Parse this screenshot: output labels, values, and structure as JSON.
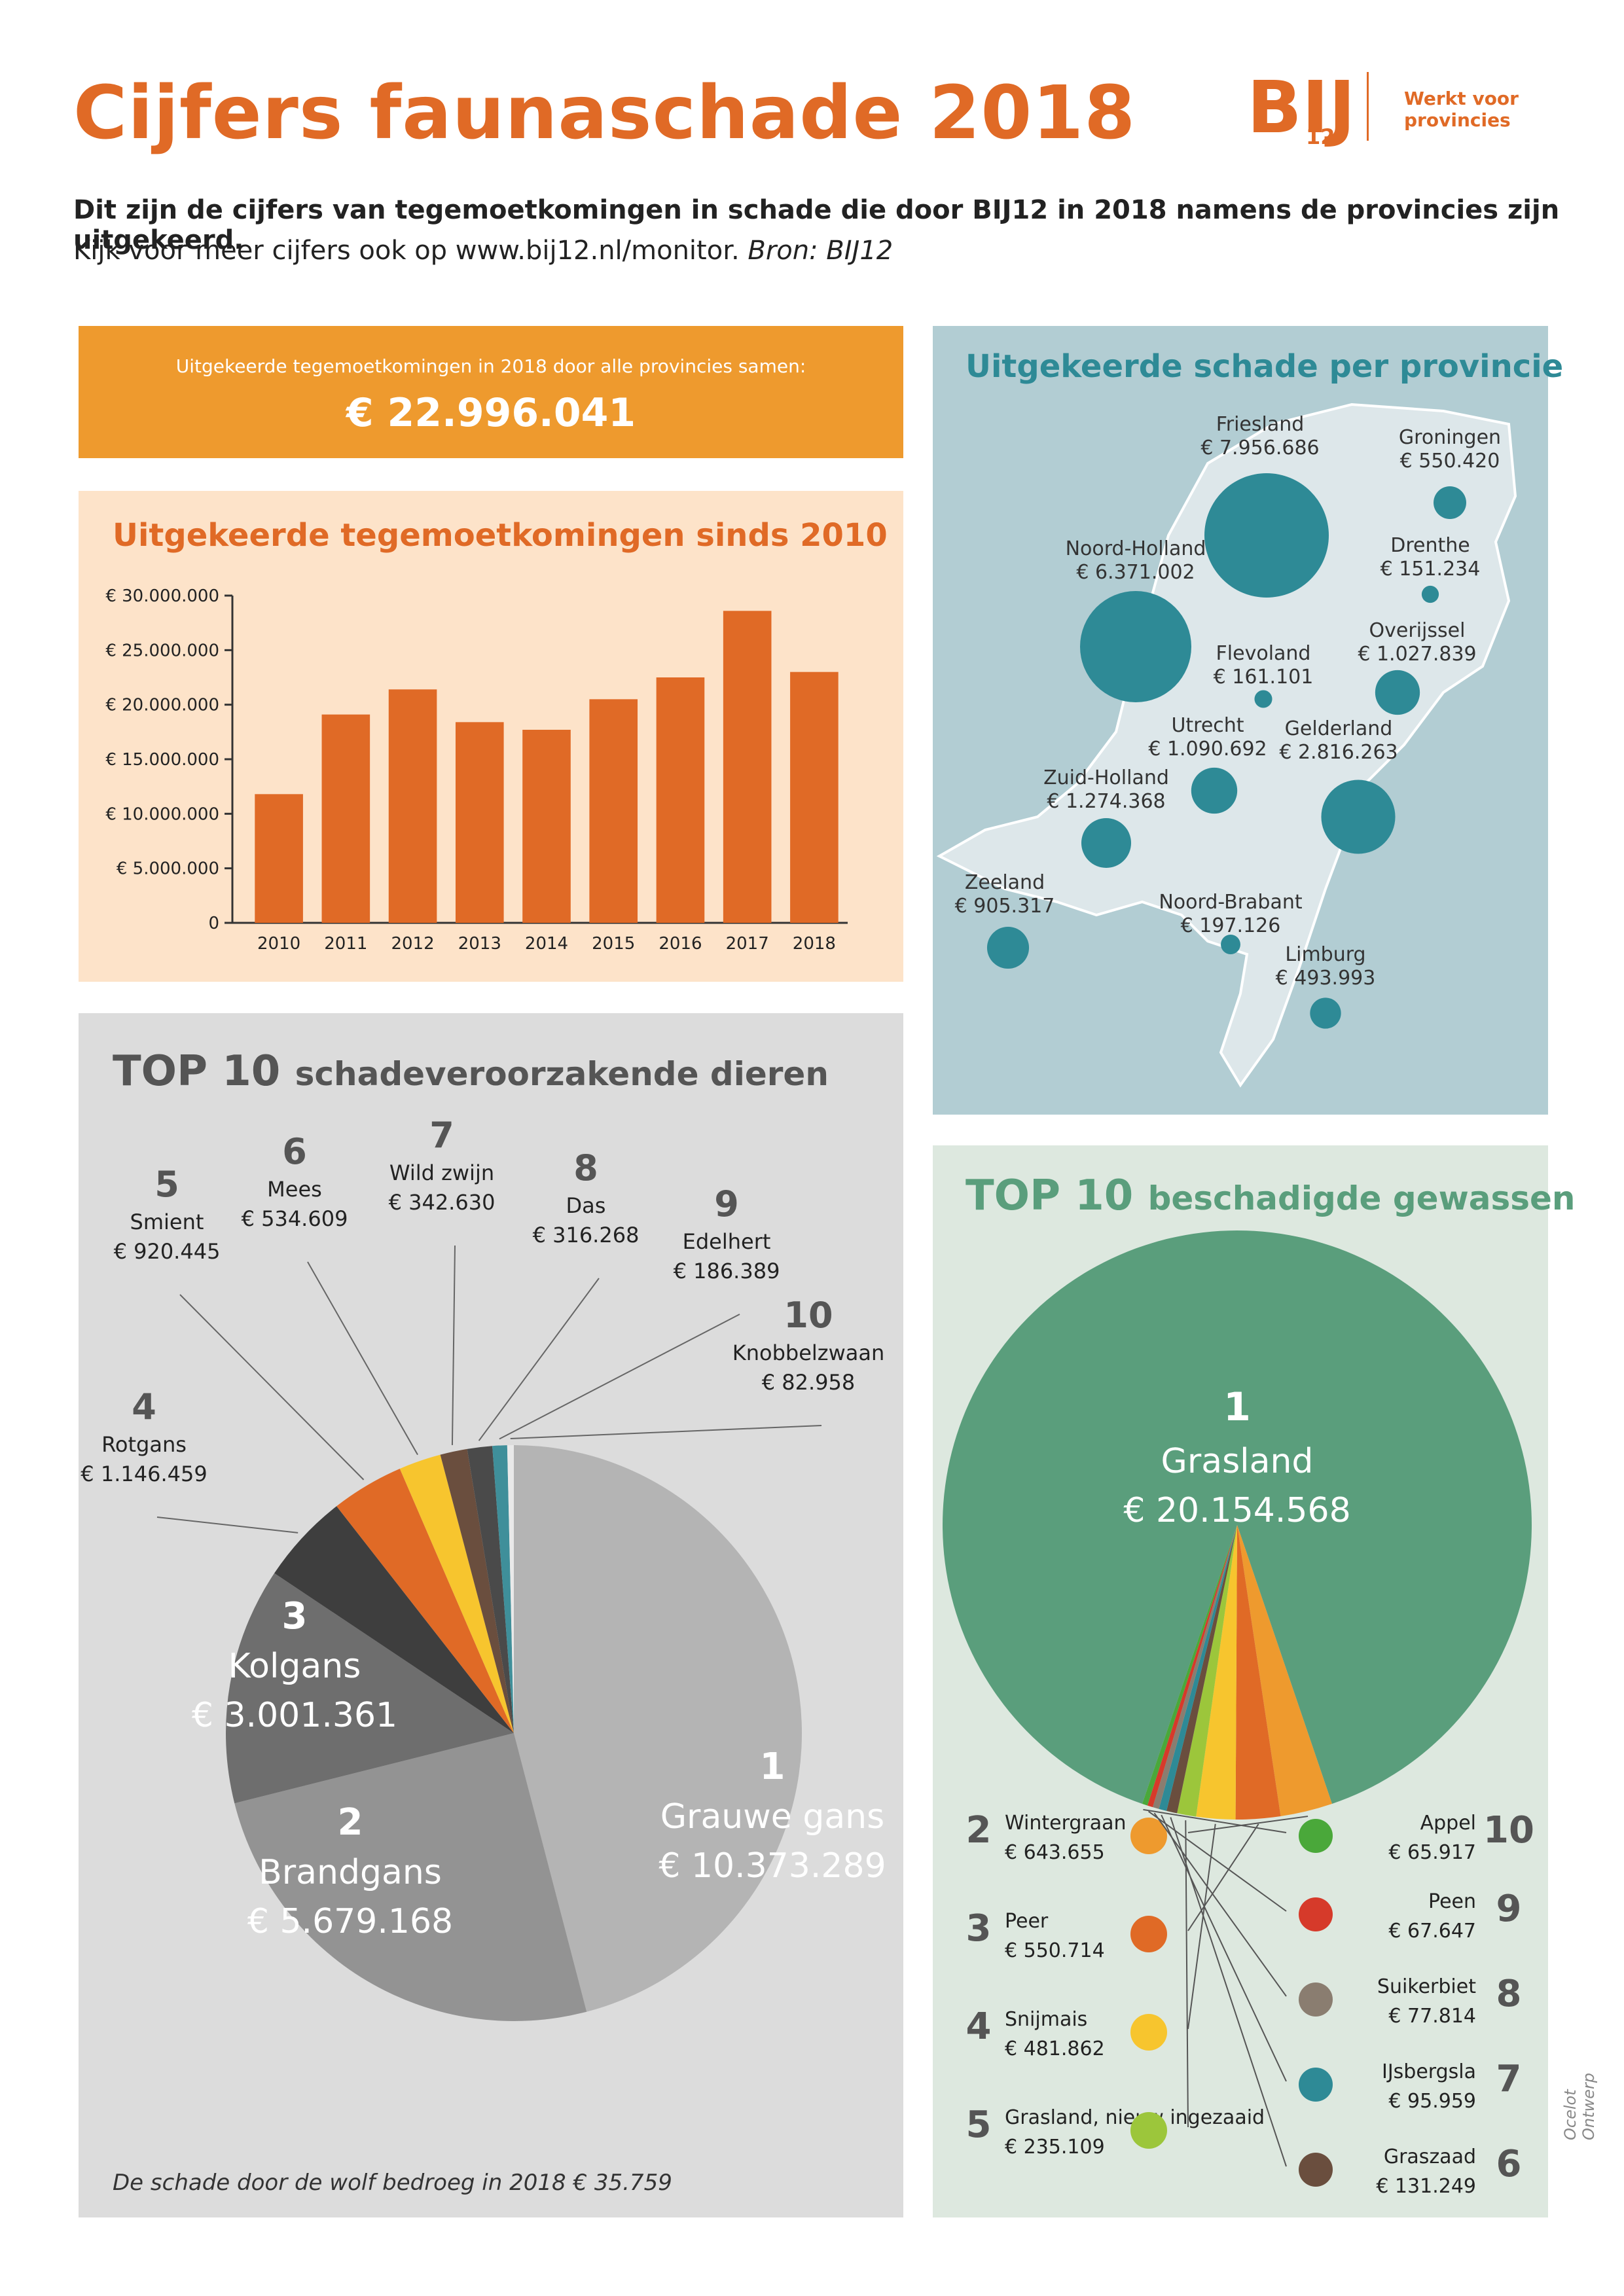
{
  "header": {
    "title": "Cijfers faunaschade 2018",
    "logo_text": "BIJ",
    "logo_number": "12",
    "tagline": "Werkt voor provincies"
  },
  "intro": {
    "line1": "Dit zijn de cijfers van tegemoetkomingen in schade die door BIJ12 in 2018 namens de provincies zijn uitgekeerd.",
    "line2": "Kijk voor meer cijfers ook op www.bij12.nl/monitor.",
    "source": "Bron: BIJ12"
  },
  "total": {
    "label": "Uitgekeerde tegemoetkomingen in 2018 door alle provincies samen:",
    "value": "€ 22.996.041"
  },
  "colors": {
    "orange": "#e06a26",
    "total_box": "#ee9a2e",
    "teal": "#2e8a96",
    "green": "#5a9e7c"
  },
  "sections": {
    "animals_rank_word": "TOP 10",
    "animals_rest": "schadeveroorzakende dieren",
    "crops_rank_word": "TOP 10",
    "crops_rest": "beschadigde gewassen",
    "wolf_note": "De schade door de wolf bedroeg in 2018 € 35.759",
    "credit": "Ocelot Ontwerp"
  },
  "chart_data": [
    {
      "type": "bar",
      "title": "Uitgekeerde tegemoetkomingen sinds 2010",
      "categories": [
        "2010",
        "2011",
        "2012",
        "2013",
        "2014",
        "2015",
        "2016",
        "2017",
        "2018"
      ],
      "values": [
        11800000,
        19100000,
        21400000,
        18400000,
        17700000,
        20500000,
        22500000,
        28600000,
        23000000
      ],
      "ylim": [
        0,
        30000000
      ],
      "yticks": [
        0,
        5000000,
        10000000,
        15000000,
        20000000,
        25000000,
        30000000
      ],
      "ytick_labels": [
        "0",
        "€ 5.000.000",
        "€ 10.000.000",
        "€ 15.000.000",
        "€ 20.000.000",
        "€ 25.000.000",
        "€ 30.000.000"
      ],
      "color": "#e06a26"
    },
    {
      "type": "scatter",
      "title": "Uitgekeerde schade per provincie",
      "points": [
        {
          "name": "Friesland",
          "label": "€ 7.956.686",
          "value": 7956686
        },
        {
          "name": "Groningen",
          "label": "€ 550.420",
          "value": 550420
        },
        {
          "name": "Drenthe",
          "label": "€ 151.234",
          "value": 151234
        },
        {
          "name": "Noord-Holland",
          "label": "€ 6.371.002",
          "value": 6371002
        },
        {
          "name": "Overijssel",
          "label": "€ 1.027.839",
          "value": 1027839
        },
        {
          "name": "Flevoland",
          "label": "€ 161.101",
          "value": 161101
        },
        {
          "name": "Utrecht",
          "label": "€ 1.090.692",
          "value": 1090692
        },
        {
          "name": "Gelderland",
          "label": "€ 2.816.263",
          "value": 2816263
        },
        {
          "name": "Zuid-Holland",
          "label": "€ 1.274.368",
          "value": 1274368
        },
        {
          "name": "Zeeland",
          "label": "€ 905.317",
          "value": 905317
        },
        {
          "name": "Noord-Brabant",
          "label": "€ 197.126",
          "value": 197126
        },
        {
          "name": "Limburg",
          "label": "€ 493.993",
          "value": 493993
        }
      ],
      "color": "#2e8a96"
    },
    {
      "type": "pie",
      "title": "TOP 10 schadeveroorzakende dieren",
      "slices": [
        {
          "rank": "1",
          "name": "Grauwe gans",
          "label": "€ 10.373.289",
          "value": 10373289,
          "color": "#b4b4b4"
        },
        {
          "rank": "2",
          "name": "Brandgans",
          "label": "€ 5.679.168",
          "value": 5679168,
          "color": "#939393"
        },
        {
          "rank": "3",
          "name": "Kolgans",
          "label": "€ 3.001.361",
          "value": 3001361,
          "color": "#6e6e6e"
        },
        {
          "rank": "4",
          "name": "Rotgans",
          "label": "€ 1.146.459",
          "value": 1146459,
          "color": "#3e3e3e"
        },
        {
          "rank": "5",
          "name": "Smient",
          "label": "€ 920.445",
          "value": 920445,
          "color": "#e06a26"
        },
        {
          "rank": "6",
          "name": "Mees",
          "label": "€ 534.609",
          "value": 534609,
          "color": "#f7c52e"
        },
        {
          "rank": "7",
          "name": "Wild zwijn",
          "label": "€ 342.630",
          "value": 342630,
          "color": "#6a4e3e"
        },
        {
          "rank": "8",
          "name": "Das",
          "label": "€ 316.268",
          "value": 316268,
          "color": "#4a4a4a"
        },
        {
          "rank": "9",
          "name": "Edelhert",
          "label": "€ 186.389",
          "value": 186389,
          "color": "#3f8f9a"
        },
        {
          "rank": "10",
          "name": "Knobbelzwaan",
          "label": "€ 82.958",
          "value": 82958,
          "color": "#e9e9e9"
        }
      ]
    },
    {
      "type": "pie",
      "title": "TOP 10 beschadigde gewassen",
      "slices": [
        {
          "rank": "1",
          "name": "Grasland",
          "label": "€ 20.154.568",
          "value": 20154568,
          "color": "#5a9e7c"
        },
        {
          "rank": "2",
          "name": "Wintergraan",
          "label": "€ 643.655",
          "value": 643655,
          "color": "#ee9a2e"
        },
        {
          "rank": "3",
          "name": "Peer",
          "label": "€ 550.714",
          "value": 550714,
          "color": "#e06a26"
        },
        {
          "rank": "4",
          "name": "Snijmais",
          "label": "€ 481.862",
          "value": 481862,
          "color": "#f7c52e"
        },
        {
          "rank": "5",
          "name": "Grasland, nieuw ingezaaid",
          "label": "€ 235.109",
          "value": 235109,
          "color": "#9cc63b"
        },
        {
          "rank": "6",
          "name": "Graszaad",
          "label": "€ 131.249",
          "value": 131249,
          "color": "#6a4e3e"
        },
        {
          "rank": "7",
          "name": "IJsbergsla",
          "label": "€ 95.959",
          "value": 95959,
          "color": "#2e8a96"
        },
        {
          "rank": "8",
          "name": "Suikerbiet",
          "label": "€ 77.814",
          "value": 77814,
          "color": "#8a7d70"
        },
        {
          "rank": "9",
          "name": "Peen",
          "label": "€ 67.647",
          "value": 67647,
          "color": "#d63a2a"
        },
        {
          "rank": "10",
          "name": "Appel",
          "label": "€ 65.917",
          "value": 65917,
          "color": "#4aa83a"
        }
      ]
    }
  ]
}
